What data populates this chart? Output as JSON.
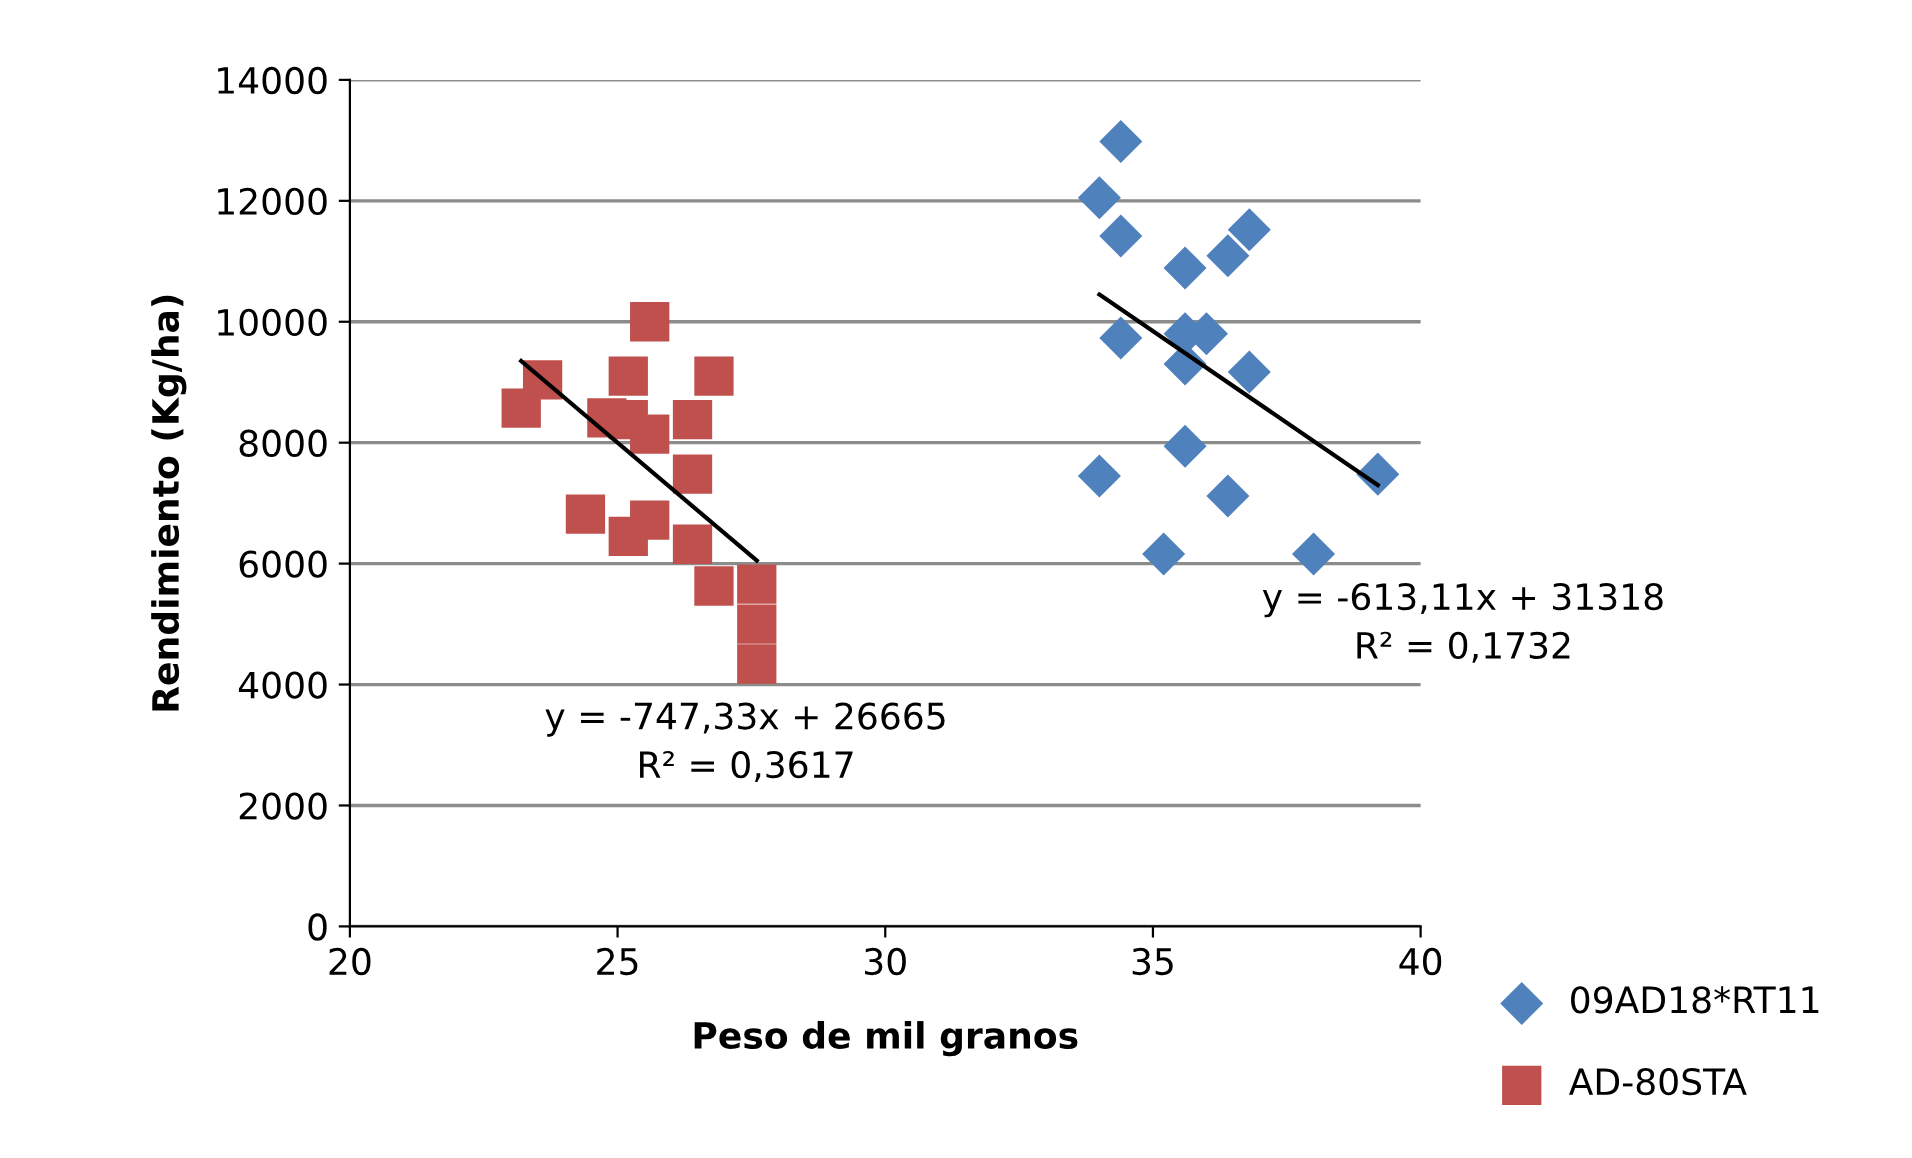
{
  "chart_data": {
    "type": "scatter",
    "xlabel": "Peso de mil granos",
    "ylabel": "Rendimiento (Kg/ha)",
    "xlim": [
      20,
      40
    ],
    "xticks": [
      20,
      25,
      30,
      35,
      40
    ],
    "ylim": [
      0,
      14000
    ],
    "yticks": [
      0,
      2000,
      4000,
      6000,
      8000,
      10000,
      12000,
      14000
    ],
    "grid": "y",
    "legend": "bottom right",
    "series": [
      {
        "name": "09AD18*RT11",
        "color": "#4f81bd",
        "marker": "diamond",
        "x": [
          34.4,
          34.0,
          34.4,
          36.8,
          36.4,
          35.6,
          34.4,
          35.6,
          36.0,
          35.6,
          36.8,
          35.6,
          34.0,
          36.4,
          35.2,
          38.0,
          39.2
        ],
        "values": [
          12980,
          12050,
          11420,
          11520,
          11090,
          10890,
          9730,
          9800,
          9800,
          9300,
          9170,
          7940,
          7450,
          7120,
          6160,
          6160,
          7480
        ]
      },
      {
        "name": "AD-80STA",
        "color": "#c0504d",
        "marker": "square",
        "x": [
          25.6,
          23.6,
          23.2,
          25.2,
          26.8,
          24.8,
          25.2,
          25.6,
          26.4,
          26.4,
          24.4,
          25.2,
          25.6,
          26.4,
          26.8,
          27.6,
          27.6,
          27.6
        ],
        "values": [
          10000,
          9040,
          8570,
          9100,
          9100,
          8410,
          8380,
          8140,
          8380,
          7480,
          6820,
          6450,
          6720,
          6320,
          5630,
          5660,
          5000,
          4340
        ]
      },
      {
        "type": "line",
        "color": "#000000",
        "x": [
          34.0,
          39.2
        ],
        "values": [
          10450,
          7300
        ]
      },
      {
        "type": "line",
        "color": "#000000",
        "x": [
          23.2,
          27.6
        ],
        "values": [
          9350,
          6050
        ]
      }
    ],
    "annotations": [
      "y = -613,11x + 31318\nR² = 0,1732",
      "y = -747,33x + 26665\nR² = 0,3617"
    ]
  }
}
